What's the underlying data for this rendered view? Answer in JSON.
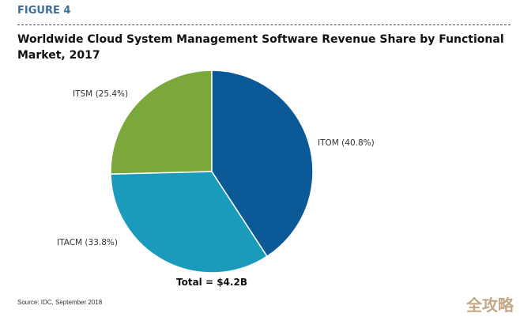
{
  "figure_label": "FIGURE 4",
  "chart_data": {
    "type": "pie",
    "title": "Worldwide Cloud System Management Software Revenue Share by Functional Market, 2017",
    "slices": [
      {
        "label": "ITOM (40.8%)",
        "name": "ITOM",
        "value": 40.8,
        "color": "#0b5996"
      },
      {
        "label": "ITACM (33.8%)",
        "name": "ITACM",
        "value": 33.8,
        "color": "#1a9bbb"
      },
      {
        "label": "ITSM (25.4%)",
        "name": "ITSM",
        "value": 25.4,
        "color": "#7ba83a"
      }
    ],
    "start": "12 o'clock",
    "direction": "clockwise",
    "annotation": "Total = $4.2B"
  },
  "source": "Source: IDC, September 2018",
  "watermark": "全攻略"
}
